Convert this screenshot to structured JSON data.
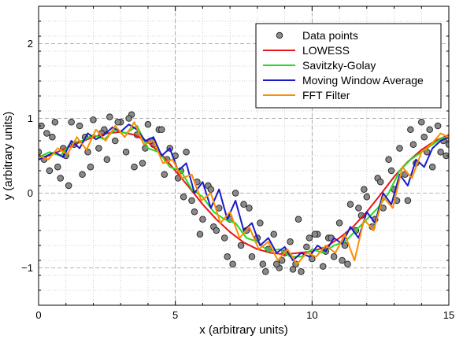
{
  "chart_data": {
    "type": "scatter",
    "title": "",
    "xlabel": "x (arbitrary units)",
    "ylabel": "y (arbitrary units)",
    "xlim": [
      0,
      15
    ],
    "ylim": [
      -1.5,
      2.5
    ],
    "x_ticks": [
      0,
      5,
      10,
      15
    ],
    "y_ticks": [
      -1,
      0,
      1,
      2
    ],
    "x_tick_labels": [
      "0",
      "5",
      "10",
      "15"
    ],
    "y_tick_labels": [
      "−1",
      "0",
      "1",
      "2"
    ],
    "grid": true,
    "legend_position": "top-right",
    "legend": [
      {
        "label": "Data points",
        "kind": "marker",
        "color": "#888888"
      },
      {
        "label": "LOWESS",
        "kind": "line",
        "color": "#e8141c"
      },
      {
        "label": "Savitzky-Golay",
        "kind": "line",
        "color": "#22dd22"
      },
      {
        "label": "Moving Window Average",
        "kind": "line",
        "color": "#1a1ac8"
      },
      {
        "label": "FFT Filter",
        "kind": "line",
        "color": "#ff8c00"
      }
    ],
    "scatter": {
      "name": "Data points",
      "x": [
        0.0,
        0.2,
        0.4,
        0.5,
        0.6,
        0.8,
        1.0,
        1.2,
        1.3,
        1.5,
        1.7,
        1.9,
        2.0,
        2.2,
        2.4,
        2.6,
        2.8,
        3.0,
        3.2,
        3.4,
        3.6,
        3.8,
        4.0,
        4.2,
        4.4,
        4.6,
        4.8,
        5.0,
        5.2,
        5.4,
        5.6,
        5.8,
        6.0,
        6.2,
        6.4,
        6.6,
        6.8,
        7.0,
        7.2,
        7.4,
        7.6,
        7.8,
        8.0,
        8.2,
        8.4,
        8.6,
        8.8,
        9.0,
        9.2,
        9.4,
        9.6,
        9.8,
        10.0,
        10.2,
        10.4,
        10.6,
        10.8,
        11.0,
        11.2,
        11.4,
        11.6,
        11.8,
        12.0,
        12.2,
        12.4,
        12.6,
        12.8,
        13.0,
        13.2,
        13.4,
        13.6,
        13.8,
        14.0,
        14.2,
        14.4,
        14.6,
        14.8,
        15.0,
        0.1,
        0.7,
        1.1,
        1.8,
        2.5,
        3.3,
        3.9,
        4.5,
        5.1,
        5.7,
        6.3,
        6.9,
        7.5,
        8.1,
        8.7,
        9.3,
        9.9,
        10.5,
        11.1,
        11.7,
        12.3,
        12.9,
        13.5,
        14.1,
        14.7,
        0.3,
        0.9,
        1.6,
        2.3,
        2.9,
        3.5,
        4.1,
        4.7,
        5.3,
        5.9,
        6.5,
        7.1,
        7.7,
        8.3,
        8.9,
        9.5,
        10.1,
        10.7,
        11.3,
        11.9,
        12.5,
        13.1,
        13.7,
        14.3,
        14.9
      ],
      "y": [
        0.55,
        0.45,
        0.3,
        0.75,
        0.95,
        0.2,
        0.5,
        0.95,
        0.65,
        0.9,
        0.75,
        0.35,
        0.98,
        0.6,
        0.85,
        1.02,
        0.7,
        0.95,
        0.55,
        1.05,
        0.78,
        0.4,
        0.92,
        0.65,
        0.85,
        0.25,
        0.6,
        0.5,
        0.3,
        0.55,
        -0.1,
        0.15,
        -0.35,
        0.1,
        -0.45,
        -0.2,
        -0.6,
        -0.35,
        0.0,
        -0.7,
        -0.5,
        -0.85,
        -0.6,
        -0.95,
        -0.75,
        -0.55,
        -1.0,
        -0.8,
        -0.65,
        -0.95,
        -1.05,
        -0.72,
        -0.88,
        -0.55,
        -0.98,
        -0.6,
        -0.85,
        -0.4,
        -0.7,
        -0.15,
        -0.5,
        -0.3,
        -0.05,
        -0.45,
        0.2,
        -0.2,
        0.45,
        0.05,
        0.6,
        0.25,
        0.85,
        0.4,
        0.95,
        0.55,
        0.35,
        0.9,
        0.7,
        0.65,
        0.9,
        0.35,
        0.1,
        0.55,
        0.45,
        1.0,
        0.6,
        0.85,
        0.2,
        -0.25,
        0.05,
        -0.85,
        -0.15,
        -0.4,
        -0.95,
        -1.02,
        -0.6,
        -0.78,
        -0.9,
        -0.2,
        -0.35,
        0.3,
        -0.1,
        0.75,
        0.55,
        0.8,
        0.6,
        0.25,
        0.8,
        0.95,
        0.35,
        0.7,
        0.45,
        -0.05,
        -0.55,
        -0.5,
        -0.95,
        -0.2,
        -1.05,
        -0.9,
        -0.35,
        -0.55,
        -0.6,
        -0.95,
        0.05,
        0.15,
        -0.1,
        0.65,
        0.85,
        0.5
      ]
    },
    "series": [
      {
        "name": "LOWESS",
        "color": "#e8141c",
        "x": [
          0.0,
          0.5,
          1.0,
          1.5,
          2.0,
          2.5,
          3.0,
          3.5,
          4.0,
          4.5,
          5.0,
          5.5,
          6.0,
          6.5,
          7.0,
          7.5,
          8.0,
          8.5,
          9.0,
          9.5,
          10.0,
          10.5,
          11.0,
          11.5,
          12.0,
          12.5,
          13.0,
          13.5,
          14.0,
          14.5,
          15.0
        ],
        "y": [
          0.45,
          0.52,
          0.6,
          0.68,
          0.75,
          0.8,
          0.82,
          0.78,
          0.68,
          0.52,
          0.3,
          0.08,
          -0.15,
          -0.35,
          -0.52,
          -0.66,
          -0.75,
          -0.8,
          -0.82,
          -0.8,
          -0.78,
          -0.72,
          -0.6,
          -0.45,
          -0.25,
          -0.02,
          0.22,
          0.42,
          0.58,
          0.7,
          0.78
        ]
      },
      {
        "name": "Savitzky-Golay",
        "color": "#22dd22",
        "x": [
          0.0,
          0.4,
          0.8,
          1.2,
          1.6,
          2.0,
          2.4,
          2.8,
          3.2,
          3.6,
          4.0,
          4.4,
          4.8,
          5.2,
          5.6,
          6.0,
          6.4,
          6.8,
          7.2,
          7.6,
          8.0,
          8.4,
          8.8,
          9.2,
          9.6,
          10.0,
          10.4,
          10.8,
          11.2,
          11.6,
          12.0,
          12.4,
          12.8,
          13.2,
          13.6,
          14.0,
          14.4,
          14.8,
          15.0
        ],
        "y": [
          0.48,
          0.55,
          0.5,
          0.68,
          0.7,
          0.78,
          0.72,
          0.85,
          0.8,
          0.9,
          0.6,
          0.55,
          0.35,
          0.3,
          0.05,
          -0.05,
          -0.25,
          -0.35,
          -0.4,
          -0.6,
          -0.65,
          -0.78,
          -0.75,
          -0.85,
          -0.85,
          -0.75,
          -0.8,
          -0.7,
          -0.65,
          -0.5,
          -0.35,
          -0.2,
          0.0,
          0.3,
          0.45,
          0.55,
          0.65,
          0.75,
          0.72
        ]
      },
      {
        "name": "Moving Window Average",
        "color": "#1a1ac8",
        "x": [
          0.0,
          0.3,
          0.6,
          0.9,
          1.2,
          1.5,
          1.8,
          2.1,
          2.4,
          2.7,
          3.0,
          3.3,
          3.6,
          3.9,
          4.2,
          4.5,
          4.8,
          5.1,
          5.4,
          5.7,
          6.0,
          6.3,
          6.6,
          6.9,
          7.2,
          7.5,
          7.8,
          8.1,
          8.4,
          8.7,
          9.0,
          9.3,
          9.6,
          9.9,
          10.2,
          10.5,
          10.8,
          11.1,
          11.4,
          11.7,
          12.0,
          12.3,
          12.6,
          12.9,
          13.2,
          13.5,
          13.8,
          14.1,
          14.4,
          14.7,
          15.0
        ],
        "y": [
          0.45,
          0.5,
          0.55,
          0.48,
          0.7,
          0.6,
          0.8,
          0.72,
          0.78,
          0.88,
          0.82,
          0.92,
          0.85,
          0.7,
          0.75,
          0.5,
          0.6,
          0.3,
          0.4,
          0.0,
          0.15,
          -0.2,
          0.05,
          -0.35,
          -0.1,
          -0.5,
          -0.4,
          -0.7,
          -0.6,
          -0.8,
          -0.72,
          -0.9,
          -0.8,
          -0.85,
          -0.7,
          -0.78,
          -0.6,
          -0.68,
          -0.45,
          -0.6,
          -0.25,
          -0.4,
          0.0,
          -0.15,
          0.25,
          0.1,
          0.45,
          0.35,
          0.6,
          0.7,
          0.75
        ]
      },
      {
        "name": "FFT Filter",
        "color": "#ff8c00",
        "x": [
          0.0,
          0.35,
          0.7,
          1.05,
          1.4,
          1.75,
          2.1,
          2.45,
          2.8,
          3.15,
          3.5,
          3.85,
          4.2,
          4.55,
          4.9,
          5.25,
          5.6,
          5.95,
          6.3,
          6.65,
          7.0,
          7.35,
          7.7,
          8.05,
          8.4,
          8.75,
          9.1,
          9.45,
          9.8,
          10.15,
          10.5,
          10.85,
          11.2,
          11.55,
          11.9,
          12.25,
          12.6,
          12.95,
          13.3,
          13.65,
          14.0,
          14.35,
          14.7,
          15.0
        ],
        "y": [
          0.5,
          0.45,
          0.6,
          0.52,
          0.75,
          0.58,
          0.85,
          0.7,
          0.9,
          0.75,
          0.95,
          0.65,
          0.7,
          0.4,
          0.45,
          0.2,
          0.25,
          -0.1,
          0.0,
          -0.4,
          -0.25,
          -0.6,
          -0.45,
          -0.75,
          -0.65,
          -0.9,
          -0.75,
          -0.95,
          -0.8,
          -0.85,
          -0.7,
          -0.8,
          -0.55,
          -0.9,
          -0.35,
          -0.5,
          -0.05,
          -0.2,
          0.35,
          0.2,
          0.55,
          0.65,
          0.8,
          0.75
        ]
      }
    ]
  }
}
